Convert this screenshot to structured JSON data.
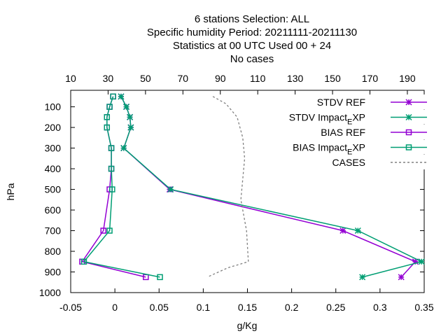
{
  "chart_data": {
    "type": "line",
    "title_lines": [
      "6 stations Selection: ALL",
      "Specific humidity  Period: 20211111-20211130",
      "Statistics at 00 UTC  Used  00 + 24",
      "No cases"
    ],
    "xlabel": "g/Kg",
    "ylabel": "hPa",
    "xlim": [
      -0.05,
      0.35
    ],
    "x2lim": [
      10,
      199
    ],
    "ylim": [
      1000,
      20
    ],
    "y_reversed": true,
    "grid": false,
    "legend_position": "top-right",
    "x_ticks": [
      "-0.05",
      "0",
      "0.05",
      "0.1",
      "0.15",
      "0.2",
      "0.25",
      "0.3",
      "0.35"
    ],
    "x2_ticks": [
      "10",
      "30",
      "50",
      "70",
      "90",
      "110",
      "130",
      "150",
      "170",
      "190"
    ],
    "y_ticks": [
      "100",
      "200",
      "300",
      "400",
      "500",
      "600",
      "700",
      "800",
      "900",
      "1000"
    ],
    "series": [
      {
        "name": "STDV REF",
        "name_parts": [
          "STDV REF",
          "",
          ""
        ],
        "color": "#9400d3",
        "marker": "star",
        "axis": "x1",
        "points": [
          [
            0.007,
            50
          ],
          [
            0.013,
            100
          ],
          [
            0.017,
            150
          ],
          [
            0.018,
            200
          ],
          [
            0.01,
            300
          ],
          [
            0.062,
            500
          ],
          [
            0.258,
            700
          ],
          [
            0.34,
            850
          ],
          [
            0.324,
            925
          ]
        ]
      },
      {
        "name": "STDV Impact_EXP",
        "name_parts": [
          "STDV Impact",
          "E",
          "XP"
        ],
        "color": "#009e73",
        "marker": "star",
        "axis": "x1",
        "points": [
          [
            0.007,
            50
          ],
          [
            0.013,
            100
          ],
          [
            0.017,
            150
          ],
          [
            0.018,
            200
          ],
          [
            0.01,
            300
          ],
          [
            0.063,
            500
          ],
          [
            0.275,
            700
          ],
          [
            0.347,
            850
          ],
          [
            0.28,
            925
          ]
        ]
      },
      {
        "name": "BIAS REF",
        "name_parts": [
          "BIAS REF",
          "",
          ""
        ],
        "color": "#9400d3",
        "marker": "square",
        "axis": "x1",
        "points": [
          [
            -0.002,
            50
          ],
          [
            -0.006,
            100
          ],
          [
            -0.009,
            150
          ],
          [
            -0.009,
            200
          ],
          [
            -0.004,
            300
          ],
          [
            -0.004,
            400
          ],
          [
            -0.006,
            500
          ],
          [
            -0.013,
            700
          ],
          [
            -0.037,
            850
          ],
          [
            0.035,
            925
          ]
        ]
      },
      {
        "name": "BIAS Impact_EXP",
        "name_parts": [
          "BIAS Impact",
          "E",
          "XP"
        ],
        "color": "#009e73",
        "marker": "square",
        "axis": "x1",
        "points": [
          [
            -0.002,
            50
          ],
          [
            -0.006,
            100
          ],
          [
            -0.009,
            150
          ],
          [
            -0.009,
            200
          ],
          [
            -0.004,
            300
          ],
          [
            -0.004,
            400
          ],
          [
            -0.003,
            500
          ],
          [
            -0.006,
            700
          ],
          [
            -0.035,
            850
          ],
          [
            0.051,
            925
          ]
        ]
      },
      {
        "name": "CASES",
        "name_parts": [
          "CASES",
          "",
          ""
        ],
        "color": "#808080",
        "marker": "none",
        "dashed": true,
        "axis": "x2",
        "points": [
          [
            86,
            50
          ],
          [
            93,
            85
          ],
          [
            99,
            150
          ],
          [
            102,
            250
          ],
          [
            103,
            350
          ],
          [
            102,
            450
          ],
          [
            101,
            550
          ],
          [
            104,
            700
          ],
          [
            105,
            850
          ],
          [
            94,
            880
          ],
          [
            83,
            925
          ]
        ]
      }
    ]
  }
}
